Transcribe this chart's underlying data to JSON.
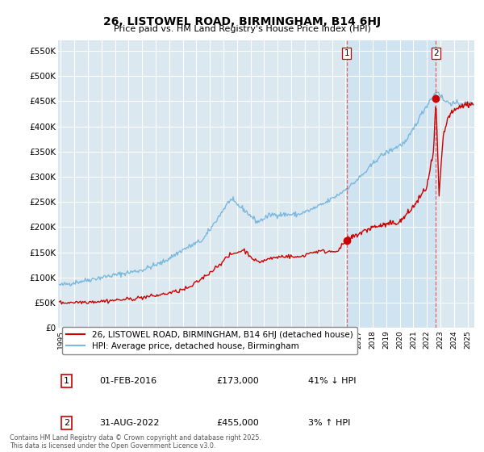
{
  "title": "26, LISTOWEL ROAD, BIRMINGHAM, B14 6HJ",
  "subtitle": "Price paid vs. HM Land Registry's House Price Index (HPI)",
  "ylabel_ticks": [
    "£0",
    "£50K",
    "£100K",
    "£150K",
    "£200K",
    "£250K",
    "£300K",
    "£350K",
    "£400K",
    "£450K",
    "£500K",
    "£550K"
  ],
  "ytick_values": [
    0,
    50000,
    100000,
    150000,
    200000,
    250000,
    300000,
    350000,
    400000,
    450000,
    500000,
    550000
  ],
  "ylim": [
    0,
    570000
  ],
  "xlim_start": 1994.8,
  "xlim_end": 2025.5,
  "xtick_years": [
    1995,
    1996,
    1997,
    1998,
    1999,
    2000,
    2001,
    2002,
    2003,
    2004,
    2005,
    2006,
    2007,
    2008,
    2009,
    2010,
    2011,
    2012,
    2013,
    2014,
    2015,
    2016,
    2017,
    2018,
    2019,
    2020,
    2021,
    2022,
    2023,
    2024,
    2025
  ],
  "hpi_color": "#7ab8de",
  "hpi_fill_color": "#c8e0f0",
  "price_color": "#cc0000",
  "vline_color": "#dd4444",
  "point1_x": 2016.08,
  "point1_y": 173000,
  "point2_x": 2022.67,
  "point2_y": 455000,
  "label1_date": "01-FEB-2016",
  "label1_price": "£173,000",
  "label1_hpi": "41% ↓ HPI",
  "label2_date": "31-AUG-2022",
  "label2_price": "£455,000",
  "label2_hpi": "3% ↑ HPI",
  "legend_line1": "26, LISTOWEL ROAD, BIRMINGHAM, B14 6HJ (detached house)",
  "legend_line2": "HPI: Average price, detached house, Birmingham",
  "footer": "Contains HM Land Registry data © Crown copyright and database right 2025.\nThis data is licensed under the Open Government Licence v3.0.",
  "background_color": "#ffffff",
  "plot_bg_color": "#dce8f0",
  "grid_color": "#ffffff"
}
